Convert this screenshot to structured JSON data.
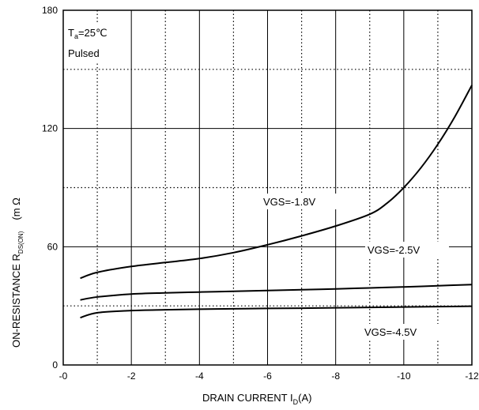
{
  "chart_data": {
    "type": "line",
    "title": "",
    "xlabel_main": "DRAIN CURRENT I",
    "xlabel_sub": "D",
    "xlabel_unit": "(A)",
    "ylabel_main": "ON-RESISTANCE    R",
    "ylabel_sub": "DS(ON)",
    "ylabel_unit": "(m Ω",
    "annotation_line1_main": "T",
    "annotation_line1_sub": "a",
    "annotation_line1_rest": "=25℃",
    "annotation_line2": "Pulsed",
    "xlim": [
      0,
      -12
    ],
    "ylim": [
      0,
      180
    ],
    "x_ticks": [
      0,
      -2,
      -4,
      -6,
      -8,
      -10,
      -12
    ],
    "x_tick_labels": [
      "-0",
      "-2",
      "-4",
      "-6",
      "-8",
      "-10",
      "-12"
    ],
    "y_ticks": [
      0,
      60,
      120,
      180
    ],
    "y_tick_labels": [
      "0",
      "60",
      "120",
      "180"
    ],
    "grid": true,
    "series": [
      {
        "name": "VGS=-1.8V",
        "x": [
          -0.5,
          -1.0,
          -2.0,
          -3.0,
          -4.0,
          -5.0,
          -6.0,
          -7.0,
          -8.0,
          -9.0,
          -9.5,
          -10.0,
          -10.5,
          -11.0,
          -11.5,
          -12.0
        ],
        "y": [
          44,
          47,
          50,
          52,
          54,
          57,
          61,
          65.5,
          70.5,
          76.5,
          82,
          90,
          100,
          112,
          126,
          142
        ]
      },
      {
        "name": "VGS=-2.5V",
        "x": [
          -0.5,
          -1.0,
          -2.0,
          -3.0,
          -4.0,
          -5.0,
          -6.0,
          -7.0,
          -8.0,
          -9.0,
          -10.0,
          -11.0,
          -12.0
        ],
        "y": [
          33,
          34.5,
          36,
          36.6,
          37,
          37.4,
          37.8,
          38.2,
          38.6,
          39.1,
          39.6,
          40.2,
          40.8
        ]
      },
      {
        "name": "VGS=-4.5V",
        "x": [
          -0.5,
          -1.0,
          -2.0,
          -3.0,
          -4.0,
          -5.0,
          -6.0,
          -7.0,
          -8.0,
          -9.0,
          -10.0,
          -11.0,
          -12.0
        ],
        "y": [
          24,
          26.5,
          27.6,
          28,
          28.3,
          28.5,
          28.7,
          28.8,
          29,
          29.2,
          29.4,
          29.6,
          29.8
        ]
      }
    ]
  }
}
